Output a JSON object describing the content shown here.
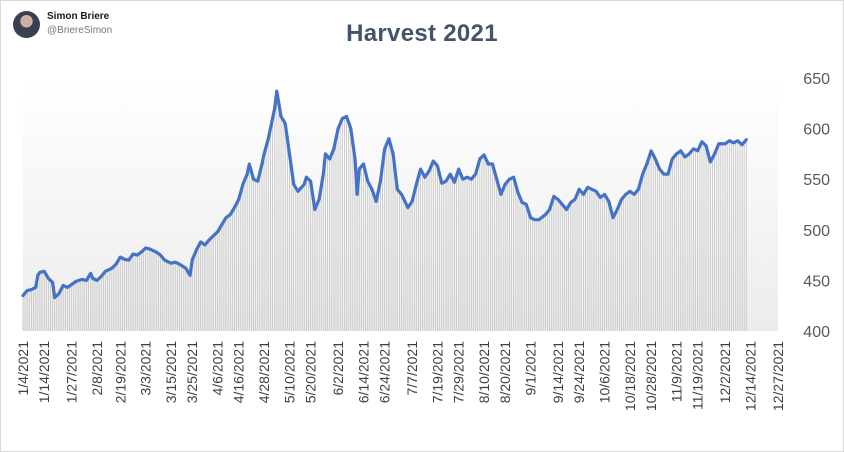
{
  "author": {
    "name": "Simon Briere",
    "handle": "@BriereSimon"
  },
  "chart_data": {
    "type": "line",
    "title": "Harvest 2021",
    "xlabel": "",
    "ylabel": "",
    "ylim": [
      400,
      650
    ],
    "y_ticks": [
      400,
      450,
      500,
      550,
      600,
      650
    ],
    "y_axis_position": "right",
    "x_tick_labels": [
      "1/4/2021",
      "1/14/2021",
      "1/27/2021",
      "2/8/2021",
      "2/19/2021",
      "3/3/2021",
      "3/15/2021",
      "3/25/2021",
      "4/6/2021",
      "4/16/2021",
      "4/28/2021",
      "5/10/2021",
      "5/20/2021",
      "6/2/2021",
      "6/14/2021",
      "6/24/2021",
      "7/7/2021",
      "7/19/2021",
      "7/29/2021",
      "8/10/2021",
      "8/20/2021",
      "9/1/2021",
      "9/14/2021",
      "9/24/2021",
      "10/6/2021",
      "10/18/2021",
      "10/28/2021",
      "11/9/2021",
      "11/19/2021",
      "12/2/2021",
      "12/14/2021",
      "12/27/2021"
    ],
    "series": [
      {
        "line_color": "#4472c4",
        "area_style": "vertical gray drop lines under the curve",
        "points": [
          [
            "1/4/2021",
            435
          ],
          [
            "1/6/2021",
            440
          ],
          [
            "1/8/2021",
            441
          ],
          [
            "1/10/2021",
            443
          ],
          [
            "1/11/2021",
            455
          ],
          [
            "1/12/2021",
            458
          ],
          [
            "1/14/2021",
            459
          ],
          [
            "1/16/2021",
            452
          ],
          [
            "1/18/2021",
            448
          ],
          [
            "1/19/2021",
            433
          ],
          [
            "1/21/2021",
            437
          ],
          [
            "1/23/2021",
            445
          ],
          [
            "1/25/2021",
            443
          ],
          [
            "1/27/2021",
            446
          ],
          [
            "1/29/2021",
            449
          ],
          [
            "2/1/2021",
            451
          ],
          [
            "2/3/2021",
            450
          ],
          [
            "2/5/2021",
            457
          ],
          [
            "2/6/2021",
            452
          ],
          [
            "2/8/2021",
            450
          ],
          [
            "2/10/2021",
            454
          ],
          [
            "2/12/2021",
            459
          ],
          [
            "2/15/2021",
            462
          ],
          [
            "2/17/2021",
            466
          ],
          [
            "2/19/2021",
            473
          ],
          [
            "2/21/2021",
            471
          ],
          [
            "2/23/2021",
            470
          ],
          [
            "2/25/2021",
            476
          ],
          [
            "2/27/2021",
            475
          ],
          [
            "3/1/2021",
            478
          ],
          [
            "3/3/2021",
            482
          ],
          [
            "3/5/2021",
            481
          ],
          [
            "3/8/2021",
            478
          ],
          [
            "3/10/2021",
            475
          ],
          [
            "3/12/2021",
            470
          ],
          [
            "3/15/2021",
            467
          ],
          [
            "3/17/2021",
            468
          ],
          [
            "3/19/2021",
            466
          ],
          [
            "3/22/2021",
            462
          ],
          [
            "3/24/2021",
            455
          ],
          [
            "3/25/2021",
            470
          ],
          [
            "3/27/2021",
            480
          ],
          [
            "3/29/2021",
            488
          ],
          [
            "3/31/2021",
            485
          ],
          [
            "4/2/2021",
            490
          ],
          [
            "4/6/2021",
            498
          ],
          [
            "4/8/2021",
            505
          ],
          [
            "4/10/2021",
            512
          ],
          [
            "4/12/2021",
            515
          ],
          [
            "4/14/2021",
            522
          ],
          [
            "4/16/2021",
            530
          ],
          [
            "4/18/2021",
            545
          ],
          [
            "4/20/2021",
            555
          ],
          [
            "4/21/2021",
            565
          ],
          [
            "4/23/2021",
            550
          ],
          [
            "4/25/2021",
            548
          ],
          [
            "4/27/2021",
            565
          ],
          [
            "4/28/2021",
            575
          ],
          [
            "4/30/2021",
            590
          ],
          [
            "5/3/2021",
            620
          ],
          [
            "5/4/2021",
            637
          ],
          [
            "5/6/2021",
            612
          ],
          [
            "5/8/2021",
            605
          ],
          [
            "5/10/2021",
            575
          ],
          [
            "5/12/2021",
            545
          ],
          [
            "5/14/2021",
            538
          ],
          [
            "5/17/2021",
            545
          ],
          [
            "5/18/2021",
            552
          ],
          [
            "5/20/2021",
            548
          ],
          [
            "5/22/2021",
            520
          ],
          [
            "5/24/2021",
            530
          ],
          [
            "5/26/2021",
            555
          ],
          [
            "5/27/2021",
            575
          ],
          [
            "5/29/2021",
            570
          ],
          [
            "5/31/2021",
            580
          ],
          [
            "6/2/2021",
            600
          ],
          [
            "6/4/2021",
            610
          ],
          [
            "6/6/2021",
            612
          ],
          [
            "6/8/2021",
            600
          ],
          [
            "6/10/2021",
            570
          ],
          [
            "6/11/2021",
            535
          ],
          [
            "6/12/2021",
            560
          ],
          [
            "6/14/2021",
            565
          ],
          [
            "6/16/2021",
            548
          ],
          [
            "6/18/2021",
            540
          ],
          [
            "6/20/2021",
            528
          ],
          [
            "6/22/2021",
            548
          ],
          [
            "6/24/2021",
            580
          ],
          [
            "6/26/2021",
            590
          ],
          [
            "6/28/2021",
            575
          ],
          [
            "6/30/2021",
            540
          ],
          [
            "7/2/2021",
            535
          ],
          [
            "7/5/2021",
            522
          ],
          [
            "7/7/2021",
            528
          ],
          [
            "7/9/2021",
            545
          ],
          [
            "7/11/2021",
            560
          ],
          [
            "7/13/2021",
            552
          ],
          [
            "7/15/2021",
            558
          ],
          [
            "7/17/2021",
            568
          ],
          [
            "7/19/2021",
            563
          ],
          [
            "7/21/2021",
            546
          ],
          [
            "7/23/2021",
            548
          ],
          [
            "7/25/2021",
            555
          ],
          [
            "7/27/2021",
            547
          ],
          [
            "7/29/2021",
            560
          ],
          [
            "7/31/2021",
            550
          ],
          [
            "8/2/2021",
            552
          ],
          [
            "8/4/2021",
            550
          ],
          [
            "8/6/2021",
            555
          ],
          [
            "8/8/2021",
            570
          ],
          [
            "8/10/2021",
            574
          ],
          [
            "8/12/2021",
            565
          ],
          [
            "8/14/2021",
            565
          ],
          [
            "8/16/2021",
            550
          ],
          [
            "8/18/2021",
            535
          ],
          [
            "8/20/2021",
            545
          ],
          [
            "8/22/2021",
            550
          ],
          [
            "8/24/2021",
            552
          ],
          [
            "8/26/2021",
            537
          ],
          [
            "8/28/2021",
            527
          ],
          [
            "8/30/2021",
            525
          ],
          [
            "9/1/2021",
            512
          ],
          [
            "9/3/2021",
            510
          ],
          [
            "9/5/2021",
            510
          ],
          [
            "9/8/2021",
            515
          ],
          [
            "9/10/2021",
            520
          ],
          [
            "9/12/2021",
            533
          ],
          [
            "9/14/2021",
            530
          ],
          [
            "9/16/2021",
            525
          ],
          [
            "9/18/2021",
            520
          ],
          [
            "9/20/2021",
            527
          ],
          [
            "9/22/2021",
            530
          ],
          [
            "9/24/2021",
            540
          ],
          [
            "9/26/2021",
            535
          ],
          [
            "9/28/2021",
            542
          ],
          [
            "9/30/2021",
            540
          ],
          [
            "10/2/2021",
            538
          ],
          [
            "10/4/2021",
            532
          ],
          [
            "10/6/2021",
            535
          ],
          [
            "10/8/2021",
            528
          ],
          [
            "10/10/2021",
            512
          ],
          [
            "10/12/2021",
            520
          ],
          [
            "10/14/2021",
            530
          ],
          [
            "10/16/2021",
            535
          ],
          [
            "10/18/2021",
            538
          ],
          [
            "10/20/2021",
            535
          ],
          [
            "10/22/2021",
            540
          ],
          [
            "10/24/2021",
            555
          ],
          [
            "10/26/2021",
            565
          ],
          [
            "10/28/2021",
            578
          ],
          [
            "10/30/2021",
            570
          ],
          [
            "11/1/2021",
            560
          ],
          [
            "11/3/2021",
            555
          ],
          [
            "11/5/2021",
            555
          ],
          [
            "11/7/2021",
            570
          ],
          [
            "11/9/2021",
            575
          ],
          [
            "11/11/2021",
            578
          ],
          [
            "11/13/2021",
            572
          ],
          [
            "11/15/2021",
            575
          ],
          [
            "11/17/2021",
            580
          ],
          [
            "11/19/2021",
            578
          ],
          [
            "11/21/2021",
            587
          ],
          [
            "11/23/2021",
            583
          ],
          [
            "11/25/2021",
            567
          ],
          [
            "11/27/2021",
            575
          ],
          [
            "11/29/2021",
            585
          ],
          [
            "12/2/2021",
            585
          ],
          [
            "12/4/2021",
            588
          ],
          [
            "12/6/2021",
            586
          ],
          [
            "12/8/2021",
            588
          ],
          [
            "12/10/2021",
            584
          ],
          [
            "12/12/2021",
            589
          ]
        ]
      }
    ],
    "grid": false,
    "legend": "none",
    "plot_background": "light gray gradient"
  }
}
